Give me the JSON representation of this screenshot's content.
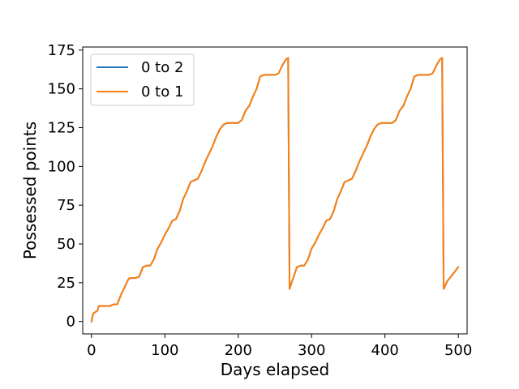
{
  "chart_data": {
    "type": "line",
    "title": "",
    "xlabel": "Days elapsed",
    "ylabel": "Possessed points",
    "xlim": [
      -12,
      512
    ],
    "ylim": [
      -8,
      177
    ],
    "xticks": [
      0,
      100,
      200,
      300,
      400,
      500
    ],
    "yticks": [
      0,
      25,
      50,
      75,
      100,
      125,
      150,
      175
    ],
    "grid": false,
    "legend_position": "top-left",
    "series": [
      {
        "name": "0 to 2",
        "color": "#1f77b4",
        "x": [
          0,
          2,
          5,
          8,
          10,
          12,
          15,
          20,
          25,
          30,
          35,
          40,
          45,
          50,
          52,
          55,
          60,
          65,
          70,
          75,
          80,
          85,
          90,
          95,
          100,
          105,
          110,
          115,
          120,
          125,
          130,
          135,
          140,
          145,
          150,
          155,
          160,
          165,
          170,
          175,
          180,
          185,
          190,
          195,
          200,
          205,
          210,
          215,
          220,
          225,
          230,
          235,
          240,
          245,
          250,
          255,
          260,
          265,
          268,
          270,
          272,
          275,
          280,
          285,
          290,
          295,
          300,
          305,
          310,
          315,
          320,
          325,
          330,
          335,
          340,
          345,
          350,
          355,
          360,
          365,
          370,
          375,
          380,
          385,
          390,
          395,
          400,
          405,
          410,
          415,
          420,
          425,
          430,
          435,
          440,
          445,
          450,
          455,
          460,
          465,
          470,
          475,
          478,
          480,
          482,
          485,
          490,
          495,
          500
        ],
        "values": [
          0,
          5,
          6,
          7,
          10,
          10,
          10,
          10,
          10,
          11,
          11,
          17,
          22,
          27,
          28,
          28,
          28,
          29,
          35,
          36,
          36,
          40,
          47,
          51,
          56,
          60,
          65,
          66,
          71,
          79,
          84,
          90,
          91,
          92,
          97,
          103,
          108,
          113,
          119,
          124,
          127,
          128,
          128,
          128,
          128,
          130,
          136,
          139,
          145,
          150,
          158,
          159,
          159,
          159,
          159,
          160,
          165,
          169,
          170,
          21,
          24,
          28,
          35,
          36,
          36,
          40,
          47,
          51,
          56,
          60,
          65,
          66,
          71,
          79,
          84,
          90,
          91,
          92,
          97,
          103,
          108,
          113,
          119,
          124,
          127,
          128,
          128,
          128,
          128,
          130,
          136,
          139,
          145,
          150,
          158,
          159,
          159,
          159,
          159,
          160,
          165,
          169,
          170,
          21,
          23,
          26,
          29,
          32,
          35
        ]
      },
      {
        "name": "0 to 1",
        "color": "#ff7f0e",
        "x": [
          0,
          2,
          5,
          8,
          10,
          12,
          15,
          20,
          25,
          30,
          35,
          40,
          45,
          50,
          52,
          55,
          60,
          65,
          70,
          75,
          80,
          85,
          90,
          95,
          100,
          105,
          110,
          115,
          120,
          125,
          130,
          135,
          140,
          145,
          150,
          155,
          160,
          165,
          170,
          175,
          180,
          185,
          190,
          195,
          200,
          205,
          210,
          215,
          220,
          225,
          230,
          235,
          240,
          245,
          250,
          255,
          260,
          265,
          268,
          270,
          272,
          275,
          280,
          285,
          290,
          295,
          300,
          305,
          310,
          315,
          320,
          325,
          330,
          335,
          340,
          345,
          350,
          355,
          360,
          365,
          370,
          375,
          380,
          385,
          390,
          395,
          400,
          405,
          410,
          415,
          420,
          425,
          430,
          435,
          440,
          445,
          450,
          455,
          460,
          465,
          470,
          475,
          478,
          480,
          482,
          485,
          490,
          495,
          500
        ],
        "values": [
          0,
          5,
          6,
          7,
          10,
          10,
          10,
          10,
          10,
          11,
          11,
          17,
          22,
          27,
          28,
          28,
          28,
          29,
          35,
          36,
          36,
          40,
          47,
          51,
          56,
          60,
          65,
          66,
          71,
          79,
          84,
          90,
          91,
          92,
          97,
          103,
          108,
          113,
          119,
          124,
          127,
          128,
          128,
          128,
          128,
          130,
          136,
          139,
          145,
          150,
          158,
          159,
          159,
          159,
          159,
          160,
          165,
          169,
          170,
          21,
          24,
          28,
          35,
          36,
          36,
          40,
          47,
          51,
          56,
          60,
          65,
          66,
          71,
          79,
          84,
          90,
          91,
          92,
          97,
          103,
          108,
          113,
          119,
          124,
          127,
          128,
          128,
          128,
          128,
          130,
          136,
          139,
          145,
          150,
          158,
          159,
          159,
          159,
          159,
          160,
          165,
          169,
          170,
          21,
          23,
          26,
          29,
          32,
          35
        ]
      }
    ]
  }
}
